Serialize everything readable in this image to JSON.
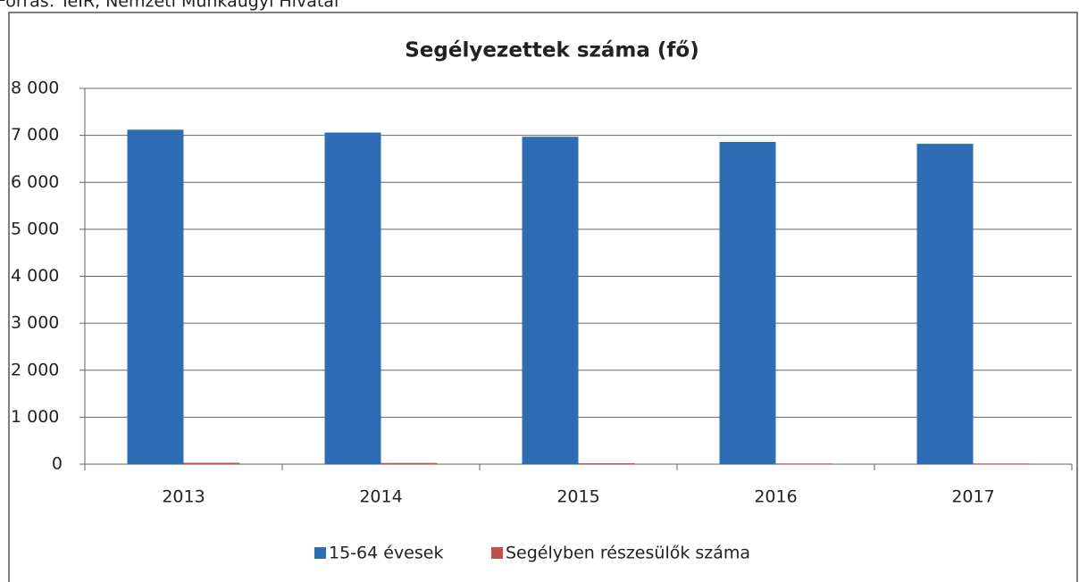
{
  "source": "Forrás: TeIR, Nemzeti Munkaügyi Hivatal",
  "chart_data": {
    "type": "bar",
    "title": "Segélyezettek száma (fő)",
    "categories": [
      "2013",
      "2014",
      "2015",
      "2016",
      "2017"
    ],
    "series": [
      {
        "name": "15-64 évesek",
        "color": "#2e6db4",
        "values": [
          7120,
          7060,
          6970,
          6860,
          6820
        ]
      },
      {
        "name": "Segélyben részesülők száma",
        "color": "#c0504d",
        "values": [
          30,
          25,
          20,
          15,
          15
        ]
      }
    ],
    "ylim": [
      0,
      8000
    ],
    "yticks": [
      0,
      {
        "value": 1000,
        "label": "1 000"
      },
      {
        "value": 2000,
        "label": "2 000"
      },
      {
        "value": 3000,
        "label": "3 000"
      },
      {
        "value": 4000,
        "label": "4 000"
      },
      {
        "value": 5000,
        "label": "5 000"
      },
      {
        "value": 6000,
        "label": "6 000"
      },
      {
        "value": 7000,
        "label": "7 000"
      },
      {
        "value": 8000,
        "label": "8 000"
      }
    ],
    "grid": true,
    "legend": "bottom"
  }
}
